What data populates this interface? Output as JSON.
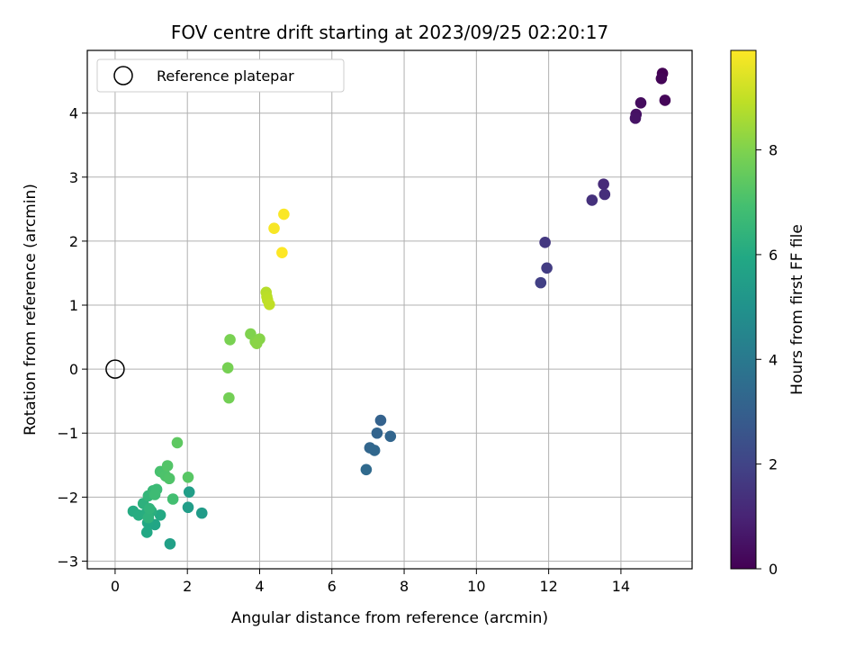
{
  "chart_data": {
    "type": "scatter",
    "title": "FOV centre drift starting at 2023/09/25 02:20:17",
    "xlabel": "Angular distance from reference (arcmin)",
    "ylabel": "Rotation from reference (arcmin)",
    "xlim": [
      -0.77,
      15.97
    ],
    "ylim": [
      -3.12,
      4.98
    ],
    "grid": true,
    "legend_position": "upper-left",
    "xticks": [
      0,
      2,
      4,
      6,
      8,
      10,
      12,
      14
    ],
    "yticks": [
      -3,
      -2,
      -1,
      0,
      1,
      2,
      3,
      4
    ],
    "colorbar": {
      "label": "Hours from first FF file",
      "range": [
        0,
        9.9
      ],
      "ticks": [
        0,
        2,
        4,
        6,
        8
      ],
      "colormap": "viridis"
    },
    "reference": {
      "name": "Reference platepar",
      "x": 0,
      "y": 0,
      "marker": "open-circle"
    },
    "points": [
      {
        "x": 15.15,
        "y": 4.62,
        "h": 0.0
      },
      {
        "x": 15.12,
        "y": 4.54,
        "h": 0.1
      },
      {
        "x": 15.22,
        "y": 4.2,
        "h": 0.15
      },
      {
        "x": 14.55,
        "y": 4.16,
        "h": 0.3
      },
      {
        "x": 14.42,
        "y": 3.98,
        "h": 0.45
      },
      {
        "x": 14.4,
        "y": 3.92,
        "h": 0.5
      },
      {
        "x": 13.52,
        "y": 2.89,
        "h": 1.2
      },
      {
        "x": 13.55,
        "y": 2.73,
        "h": 1.3
      },
      {
        "x": 13.2,
        "y": 2.64,
        "h": 1.4
      },
      {
        "x": 11.9,
        "y": 1.98,
        "h": 1.6
      },
      {
        "x": 11.95,
        "y": 1.58,
        "h": 1.75
      },
      {
        "x": 11.78,
        "y": 1.35,
        "h": 1.85
      },
      {
        "x": 7.35,
        "y": -0.8,
        "h": 3.1
      },
      {
        "x": 7.25,
        "y": -1.0,
        "h": 3.15
      },
      {
        "x": 7.62,
        "y": -1.05,
        "h": 3.2
      },
      {
        "x": 7.05,
        "y": -1.23,
        "h": 3.25
      },
      {
        "x": 7.18,
        "y": -1.27,
        "h": 3.3
      },
      {
        "x": 6.95,
        "y": -1.57,
        "h": 3.4
      },
      {
        "x": 2.05,
        "y": -1.92,
        "h": 5.5
      },
      {
        "x": 2.4,
        "y": -2.25,
        "h": 5.4
      },
      {
        "x": 2.02,
        "y": -2.16,
        "h": 5.45
      },
      {
        "x": 1.52,
        "y": -2.73,
        "h": 5.6
      },
      {
        "x": 1.1,
        "y": -2.43,
        "h": 5.8
      },
      {
        "x": 0.9,
        "y": -2.4,
        "h": 5.9
      },
      {
        "x": 0.88,
        "y": -2.55,
        "h": 5.95
      },
      {
        "x": 1.25,
        "y": -2.28,
        "h": 6.0
      },
      {
        "x": 0.5,
        "y": -2.22,
        "h": 6.05
      },
      {
        "x": 0.65,
        "y": -2.28,
        "h": 6.1
      },
      {
        "x": 0.85,
        "y": -2.26,
        "h": 6.15
      },
      {
        "x": 1.0,
        "y": -2.22,
        "h": 6.2
      },
      {
        "x": 0.78,
        "y": -2.1,
        "h": 6.3
      },
      {
        "x": 0.92,
        "y": -2.32,
        "h": 6.35
      },
      {
        "x": 0.95,
        "y": -2.18,
        "h": 6.4
      },
      {
        "x": 0.92,
        "y": -1.98,
        "h": 6.5
      },
      {
        "x": 1.05,
        "y": -1.9,
        "h": 6.6
      },
      {
        "x": 1.15,
        "y": -1.88,
        "h": 6.7
      },
      {
        "x": 1.1,
        "y": -1.96,
        "h": 6.75
      },
      {
        "x": 1.6,
        "y": -2.03,
        "h": 6.9
      },
      {
        "x": 1.25,
        "y": -1.6,
        "h": 7.0
      },
      {
        "x": 1.35,
        "y": -1.63,
        "h": 7.05
      },
      {
        "x": 1.4,
        "y": -1.67,
        "h": 7.1
      },
      {
        "x": 1.5,
        "y": -1.71,
        "h": 7.15
      },
      {
        "x": 1.45,
        "y": -1.51,
        "h": 7.2
      },
      {
        "x": 2.02,
        "y": -1.69,
        "h": 7.3
      },
      {
        "x": 1.72,
        "y": -1.15,
        "h": 7.4
      },
      {
        "x": 3.15,
        "y": -0.45,
        "h": 7.8
      },
      {
        "x": 3.12,
        "y": 0.02,
        "h": 7.85
      },
      {
        "x": 3.18,
        "y": 0.46,
        "h": 7.9
      },
      {
        "x": 3.75,
        "y": 0.55,
        "h": 8.0
      },
      {
        "x": 3.88,
        "y": 0.43,
        "h": 8.05
      },
      {
        "x": 4.0,
        "y": 0.47,
        "h": 8.1
      },
      {
        "x": 3.92,
        "y": 0.4,
        "h": 8.15
      },
      {
        "x": 4.18,
        "y": 1.2,
        "h": 8.8
      },
      {
        "x": 4.2,
        "y": 1.13,
        "h": 8.85
      },
      {
        "x": 4.22,
        "y": 1.08,
        "h": 8.9
      },
      {
        "x": 4.27,
        "y": 1.01,
        "h": 8.95
      },
      {
        "x": 4.4,
        "y": 2.2,
        "h": 9.8
      },
      {
        "x": 4.67,
        "y": 2.42,
        "h": 9.85
      },
      {
        "x": 4.62,
        "y": 1.82,
        "h": 9.9
      }
    ]
  }
}
